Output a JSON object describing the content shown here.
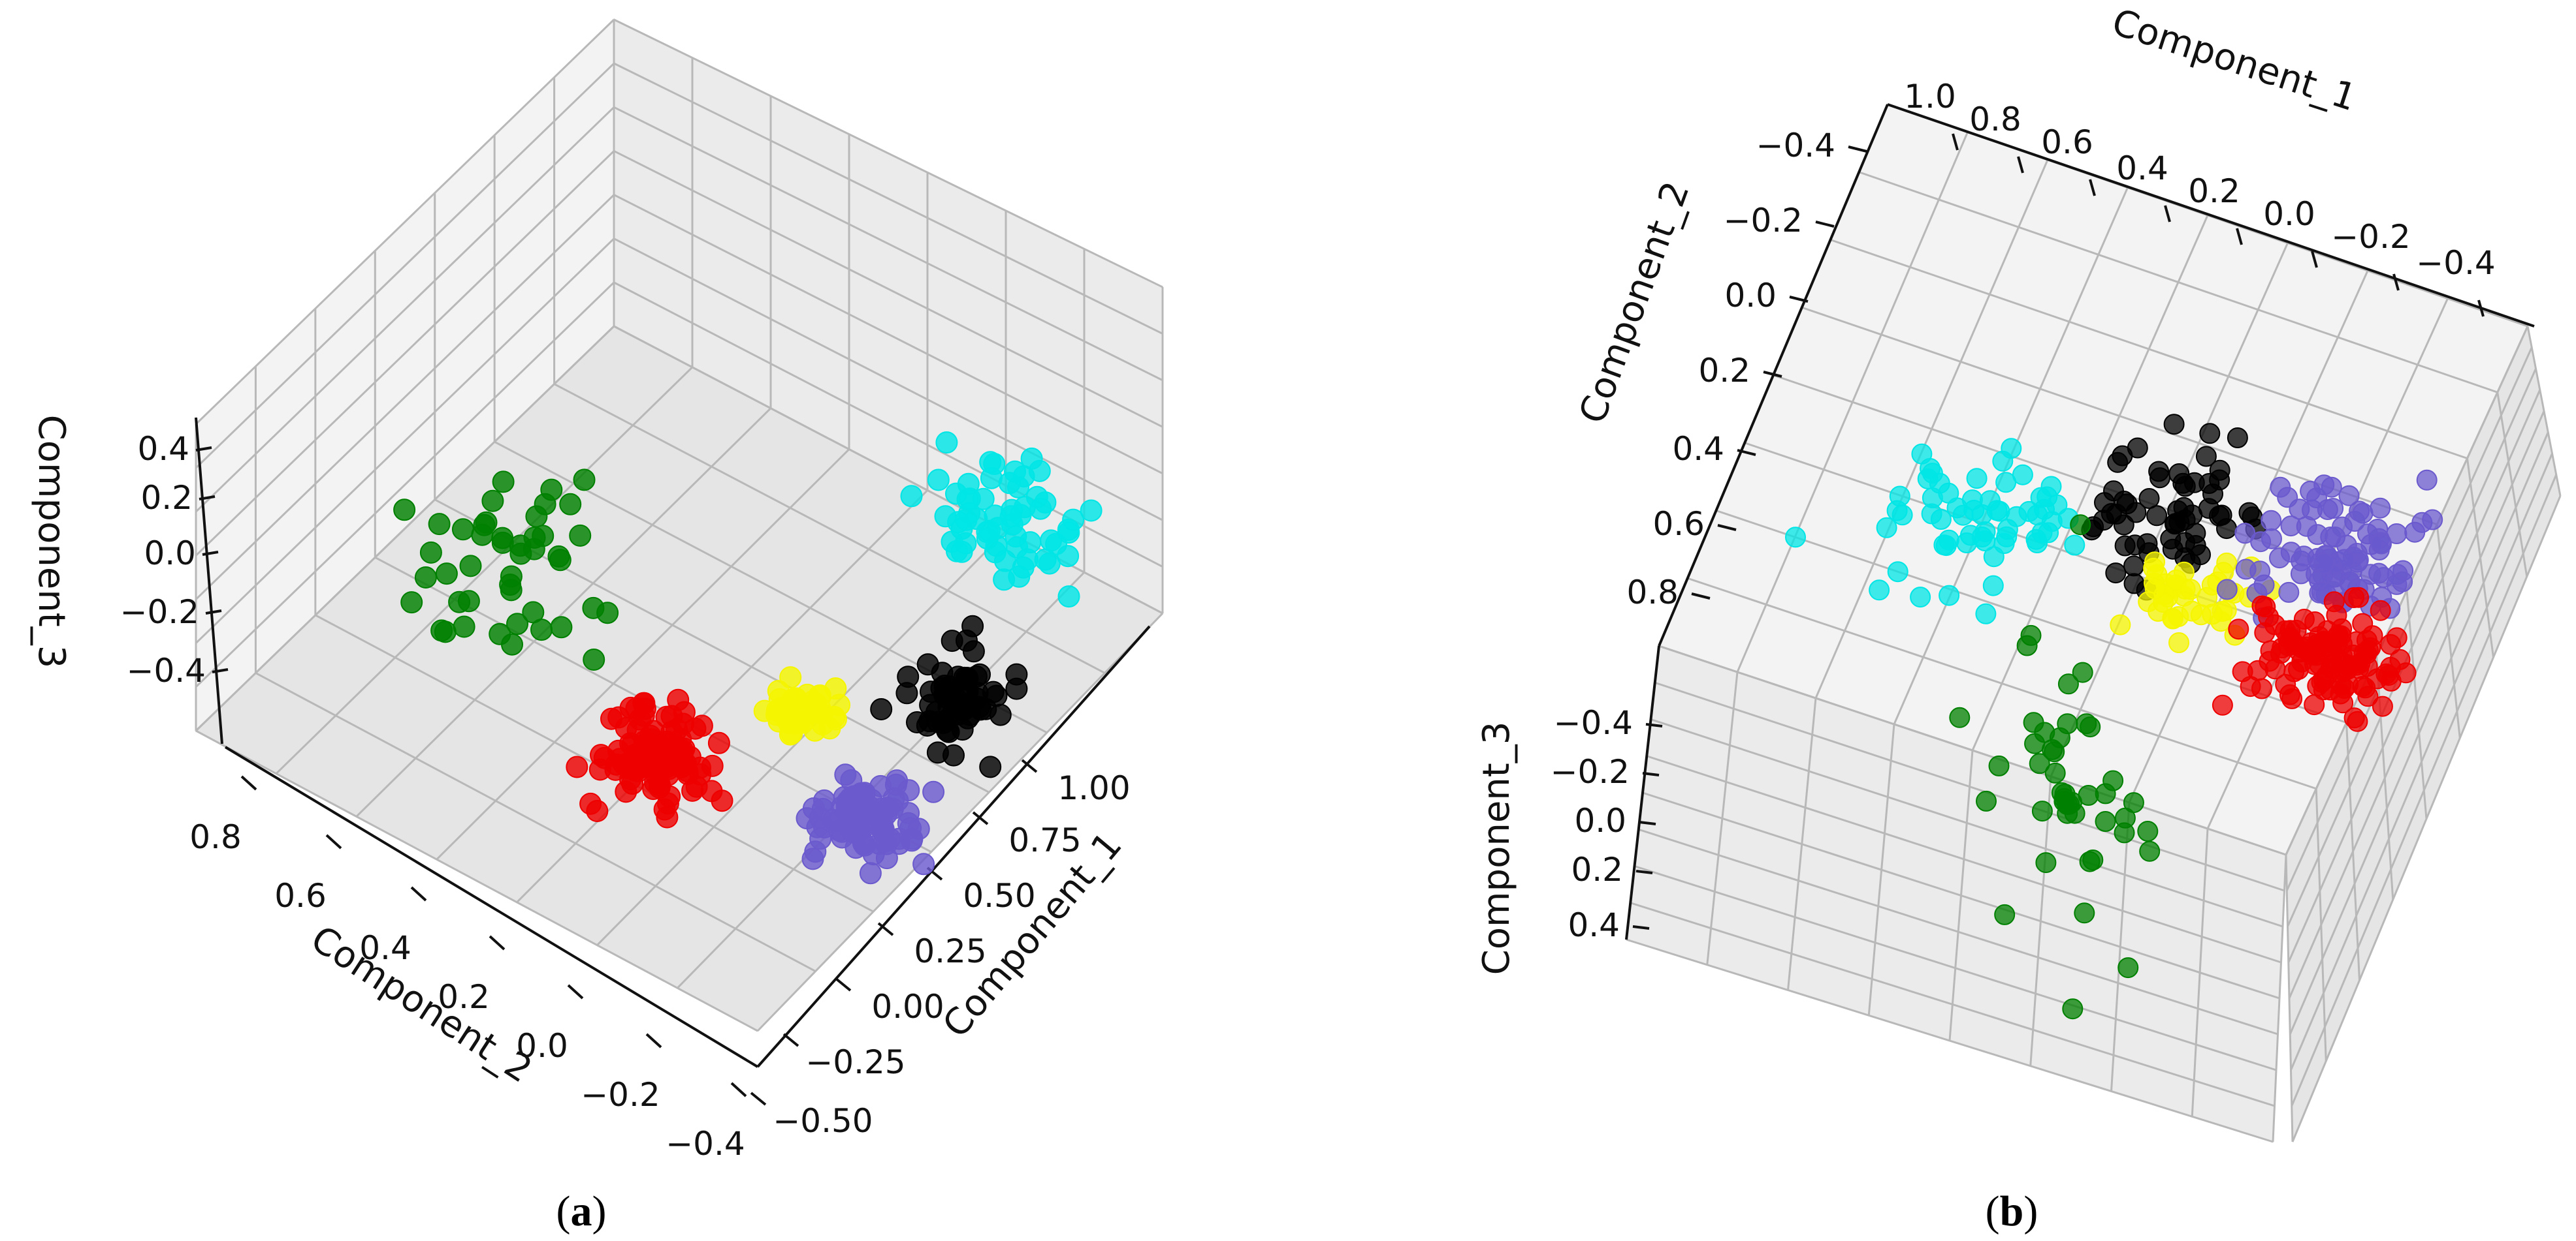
{
  "chart_data": [
    {
      "panel": "a",
      "type": "scatter3d",
      "caption": {
        "open": "(",
        "letter": "a",
        "close": ")"
      },
      "xlabel": "Component_1",
      "ylabel": "Component_2",
      "zlabel": "Component_3",
      "xlim": [
        -0.5,
        1.1
      ],
      "ylim": [
        -0.45,
        0.9
      ],
      "zlim": [
        -0.45,
        0.55
      ],
      "x_ticks": [
        "−0.50",
        "−0.25",
        "0.00",
        "0.25",
        "0.50",
        "0.75",
        "1.00"
      ],
      "y_ticks": [
        "0.8",
        "0.6",
        "0.4",
        "0.2",
        "0.0",
        "−0.2",
        "−0.4"
      ],
      "z_ticks": [
        "0.4",
        "0.2",
        "0.0",
        "−0.2",
        "−0.4"
      ],
      "clusters": [
        {
          "name": "green",
          "color": "#008000",
          "n": 45,
          "center": [
            -0.15,
            0.65,
            0.3
          ],
          "spread": [
            0.25,
            0.22,
            0.2
          ]
        },
        {
          "name": "cyan",
          "color": "#00e5e5",
          "n": 60,
          "center": [
            0.85,
            -0.05,
            0.25
          ],
          "spread": [
            0.15,
            0.18,
            0.15
          ]
        },
        {
          "name": "black",
          "color": "#000000",
          "n": 60,
          "center": [
            0.55,
            -0.15,
            -0.05
          ],
          "spread": [
            0.12,
            0.1,
            0.08
          ]
        },
        {
          "name": "yellow",
          "color": "#f5f500",
          "n": 40,
          "center": [
            0.35,
            0.15,
            -0.1
          ],
          "spread": [
            0.08,
            0.08,
            0.06
          ]
        },
        {
          "name": "red",
          "color": "#ee0000",
          "n": 110,
          "center": [
            0.1,
            0.4,
            -0.2
          ],
          "spread": [
            0.12,
            0.12,
            0.1
          ]
        },
        {
          "name": "slateblue",
          "color": "#6a5acd",
          "n": 90,
          "center": [
            0.3,
            -0.05,
            -0.3
          ],
          "spread": [
            0.12,
            0.1,
            0.07
          ]
        }
      ]
    },
    {
      "panel": "b",
      "type": "scatter3d",
      "caption": {
        "open": "(",
        "letter": "b",
        "close": ")"
      },
      "xlabel": "Component_1",
      "ylabel": "Component_2",
      "zlabel": "Component_3",
      "x_ticks": [
        "1.0",
        "0.8",
        "0.6",
        "0.4",
        "0.2",
        "0.0",
        "−0.2",
        "−0.4"
      ],
      "y_ticks": [
        "−0.4",
        "−0.2",
        "0.0",
        "0.2",
        "0.4",
        "0.6",
        "0.8"
      ],
      "z_ticks": [
        "−0.4",
        "−0.2",
        "0.0",
        "0.2",
        "0.4"
      ],
      "clusters": [
        {
          "name": "cyan",
          "color": "#00e5e5",
          "n": 60
        },
        {
          "name": "black",
          "color": "#000000",
          "n": 60
        },
        {
          "name": "yellow",
          "color": "#f5f500",
          "n": 40
        },
        {
          "name": "slateblue",
          "color": "#6a5acd",
          "n": 90
        },
        {
          "name": "red",
          "color": "#ee0000",
          "n": 110
        },
        {
          "name": "green",
          "color": "#008000",
          "n": 45
        }
      ]
    }
  ]
}
